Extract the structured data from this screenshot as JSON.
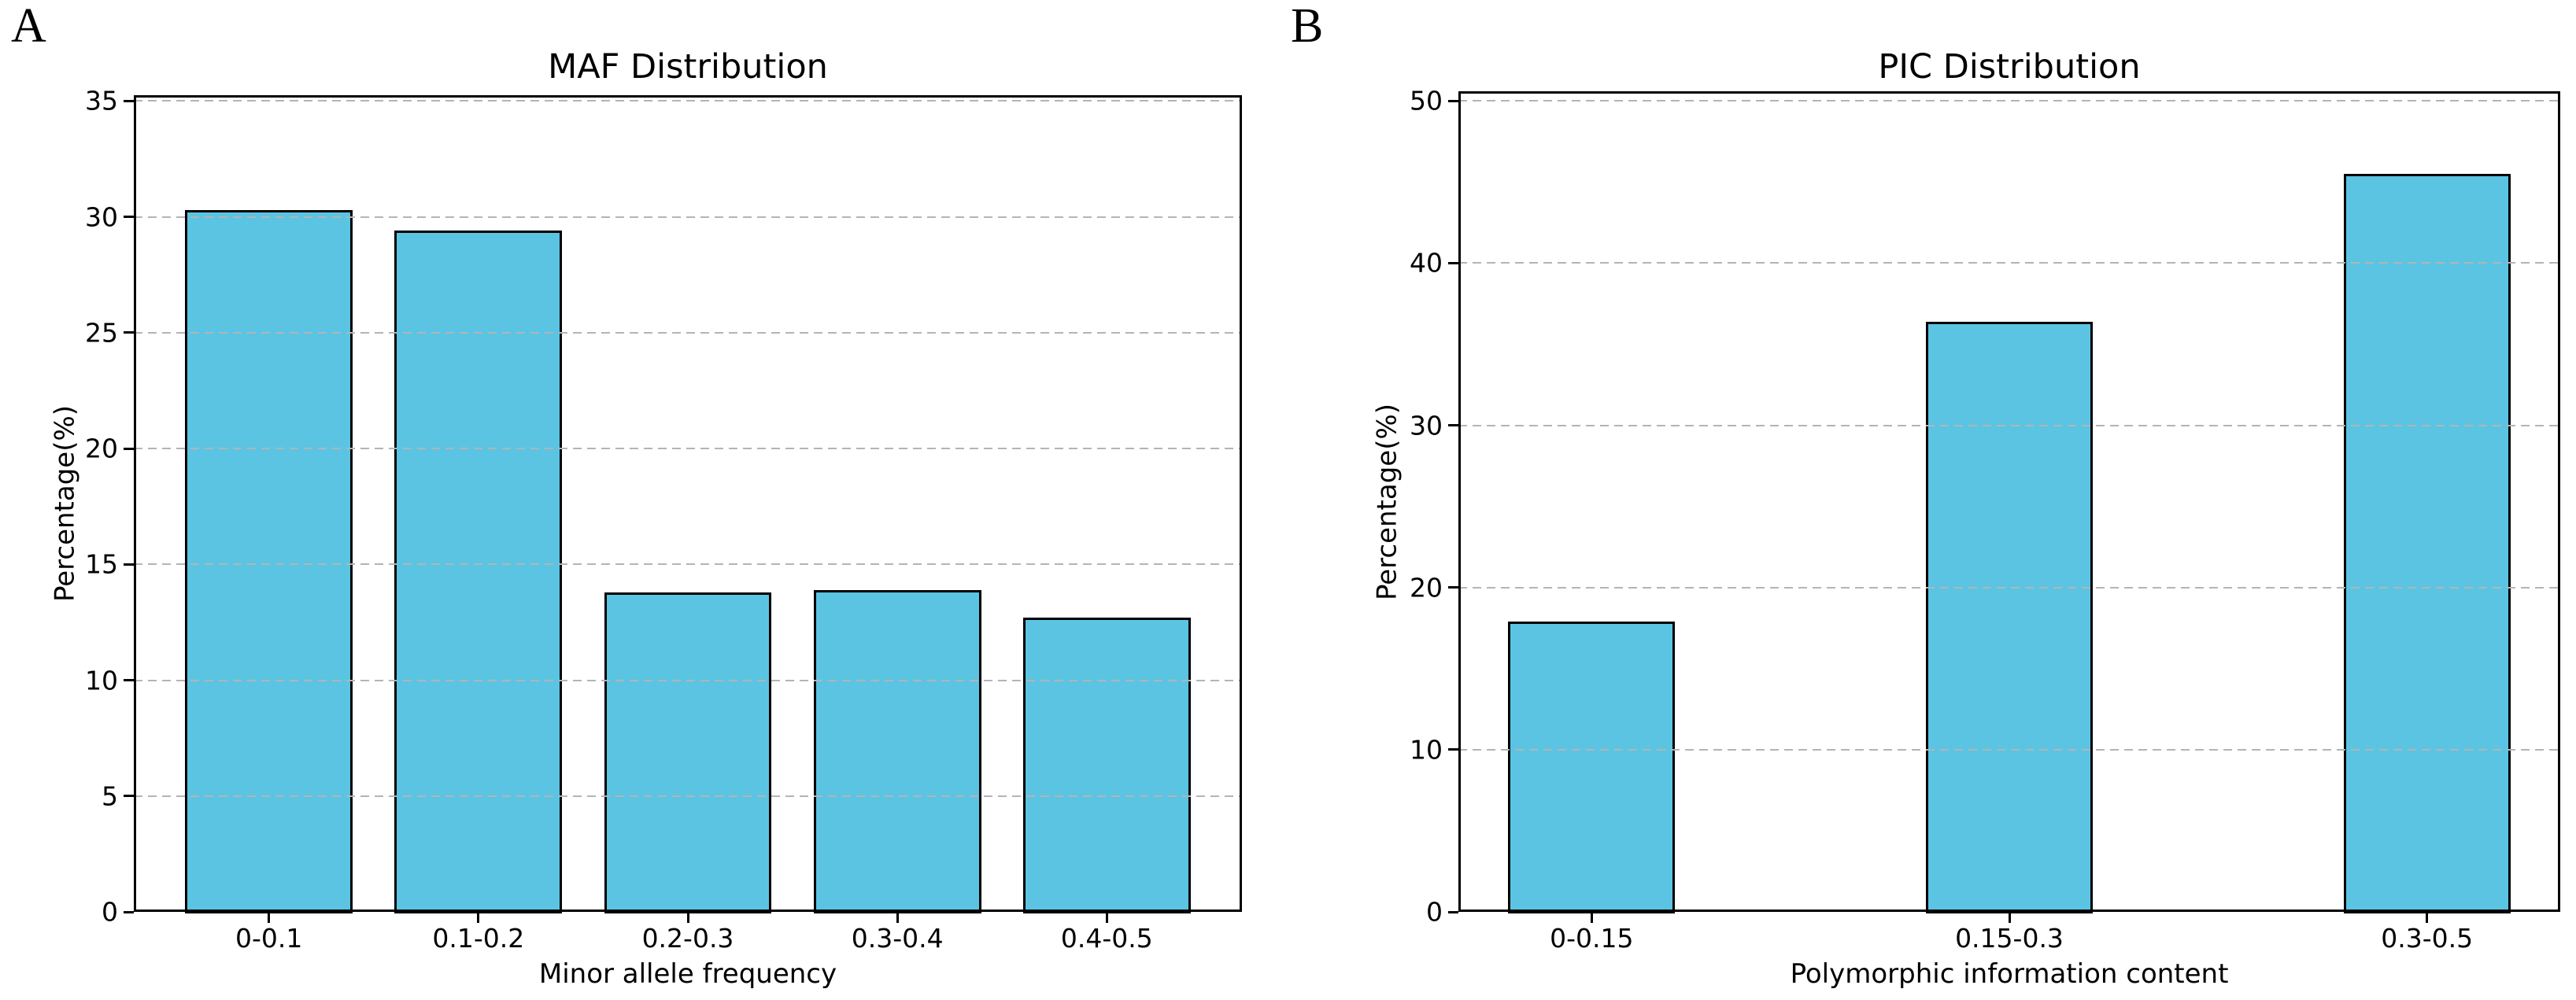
{
  "panel_letters": [
    "A",
    "B"
  ],
  "chart_data": [
    {
      "type": "bar",
      "title": "MAF Distribution",
      "categories": [
        "0-0.1",
        "0.1-0.2",
        "0.2-0.3",
        "0.3-0.4",
        "0.4-0.5"
      ],
      "values": [
        30.3,
        29.4,
        13.8,
        13.9,
        12.7
      ],
      "xlabel": "Minor allele frequency",
      "ylabel": "Percentage(%)",
      "ylim": [
        0,
        35.25
      ],
      "yticks": [
        0,
        5,
        10,
        15,
        20,
        25,
        30,
        35
      ],
      "grid": "horizontal-dashed",
      "legend": "none",
      "bar_color": "#5BC4E2",
      "bar_edge_color": "#000000",
      "grid_color": "#b4b4b4"
    },
    {
      "type": "bar",
      "title": "PIC Distribution",
      "categories": [
        "0-0.15",
        "0.15-0.3",
        "0.3-0.5"
      ],
      "values": [
        17.9,
        36.4,
        45.5
      ],
      "xlabel": "Polymorphic information content",
      "ylabel": "Percentage(%)",
      "ylim": [
        0,
        50.6
      ],
      "yticks": [
        0,
        10,
        20,
        30,
        40,
        50
      ],
      "grid": "horizontal-dashed",
      "legend": "none",
      "bar_color": "#5BC4E2",
      "bar_edge_color": "#000000",
      "grid_color": "#b4b4b4"
    }
  ]
}
